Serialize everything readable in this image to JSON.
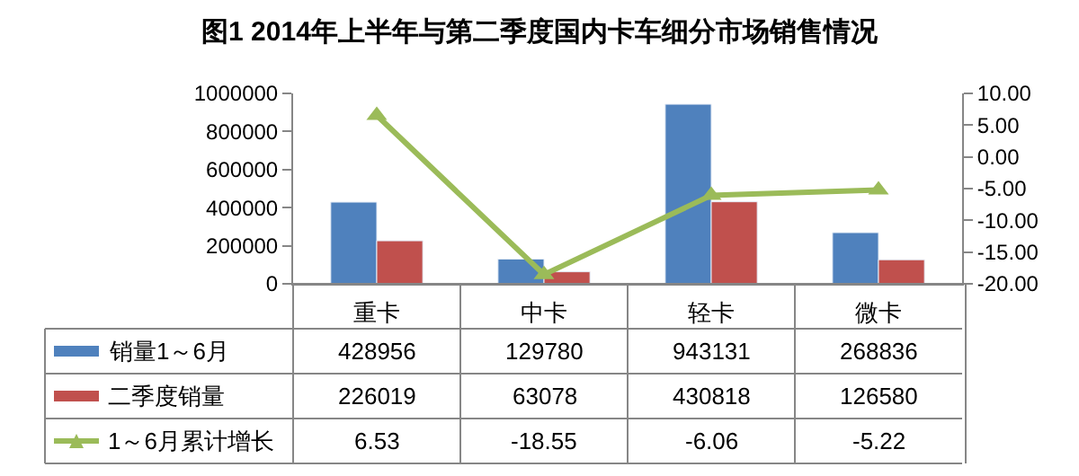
{
  "chart_data": {
    "type": "bar",
    "title": "图1 2014年上半年与第二季度国内卡车细分市场销售情况",
    "categories": [
      "重卡",
      "中卡",
      "轻卡",
      "微卡"
    ],
    "series": [
      {
        "name": "销量1～6月",
        "color": "#4f81bd",
        "values": [
          428956,
          129780,
          943131,
          268836
        ]
      },
      {
        "name": "二季度销量",
        "color": "#c0504d",
        "values": [
          226019,
          63078,
          430818,
          126580
        ]
      },
      {
        "name": "1～6月累计增长",
        "color": "#9bbb59",
        "type": "line",
        "axis": "y2",
        "marker": "triangle",
        "values": [
          6.53,
          -18.55,
          -6.06,
          -5.22
        ]
      }
    ],
    "ylim": [
      0,
      1000000
    ],
    "yticks": [
      0,
      200000,
      400000,
      600000,
      800000,
      1000000
    ],
    "y2lim": [
      -20,
      10
    ],
    "y2ticks": [
      {
        "value": -20,
        "label": "-20.00"
      },
      {
        "value": -15,
        "label": "-15.00"
      },
      {
        "value": -10,
        "label": "-10.00"
      },
      {
        "value": -5,
        "label": "-5.00"
      },
      {
        "value": 0,
        "label": "0.00"
      },
      {
        "value": 5,
        "label": "5.00"
      },
      {
        "value": 10,
        "label": "10.00"
      }
    ],
    "data_labels": true,
    "legend": "left"
  }
}
